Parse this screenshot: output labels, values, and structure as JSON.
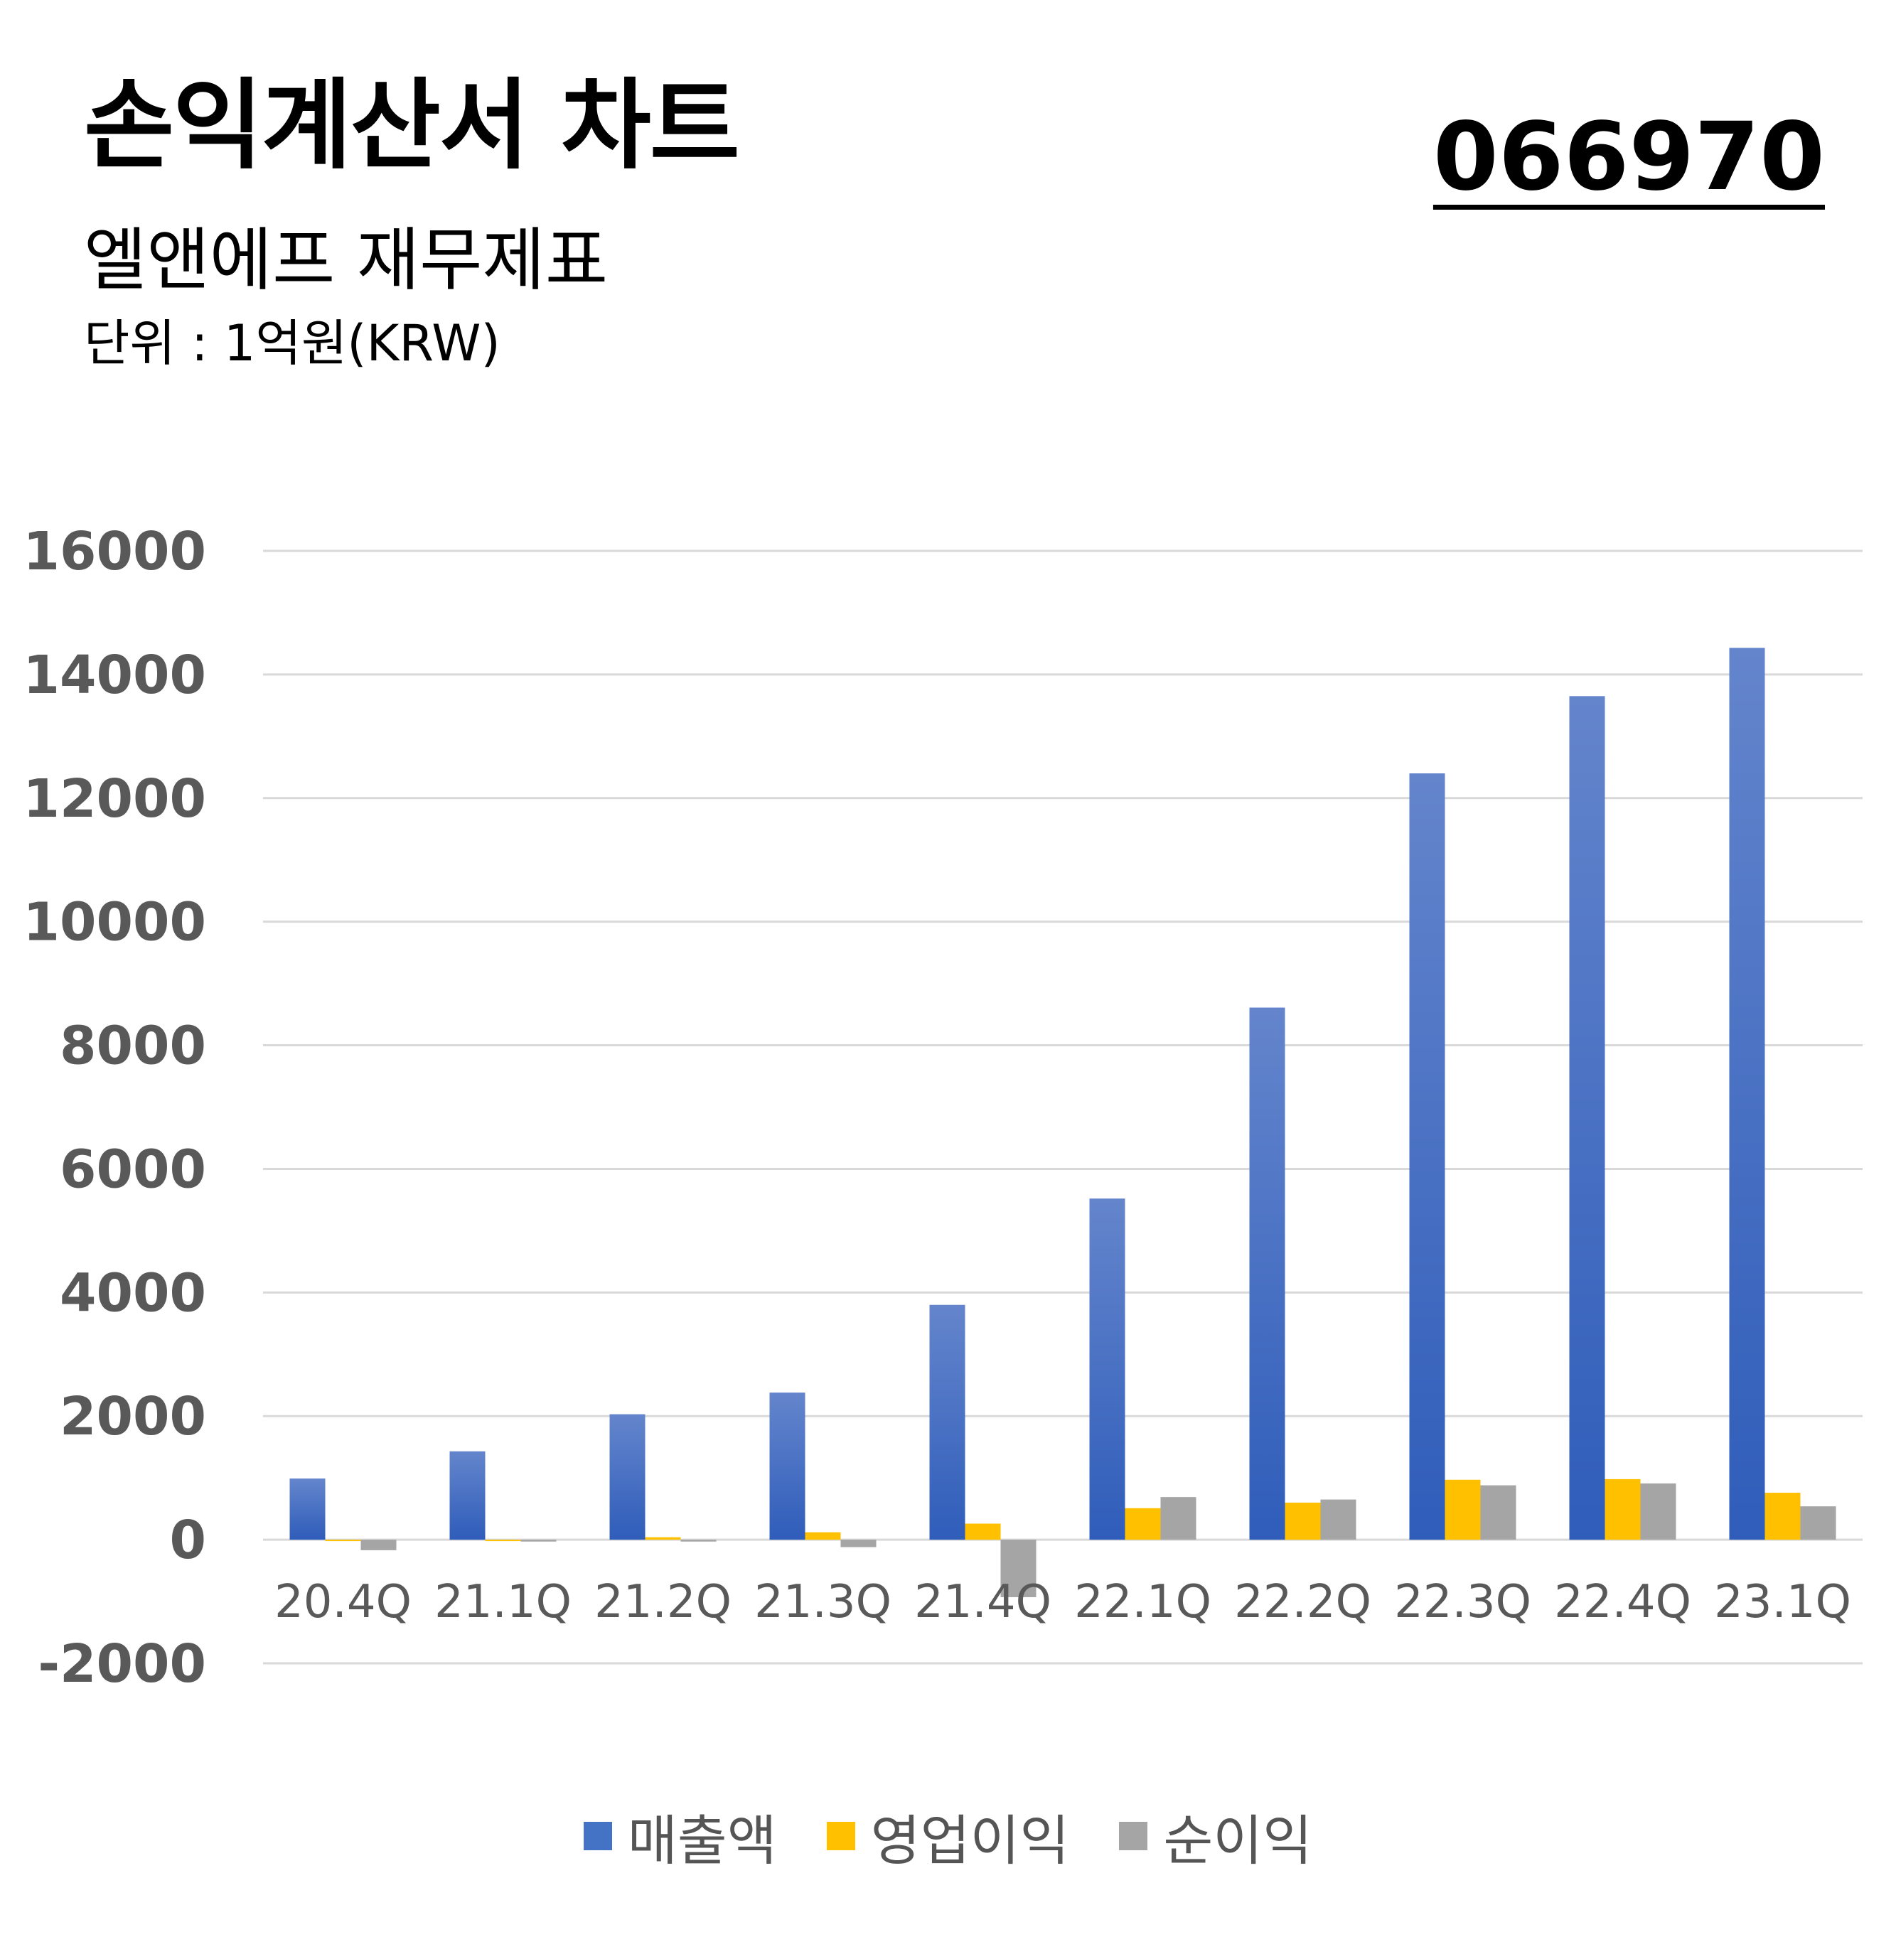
{
  "header": {
    "title": "손익계산서 차트",
    "subtitle": "엘앤에프 재무제표",
    "unit": "단위 : 1억원(KRW)",
    "code": "066970"
  },
  "colors": {
    "revenue": "#4472C4",
    "operating_income": "#FFC000",
    "net_income": "#A5A5A5",
    "gridline": "#D9D9D9",
    "axis_text": "#595959"
  },
  "chart_data": {
    "type": "bar",
    "categories": [
      "20.4Q",
      "21.1Q",
      "21.2Q",
      "21.3Q",
      "21.4Q",
      "22.1Q",
      "22.2Q",
      "22.3Q",
      "22.4Q",
      "23.1Q"
    ],
    "series": [
      {
        "name": "매출액",
        "values": [
          990,
          1430,
          2030,
          2380,
          3800,
          5520,
          8610,
          12400,
          13650,
          14430
        ]
      },
      {
        "name": "영업이익",
        "values": [
          -10,
          -20,
          40,
          120,
          260,
          510,
          600,
          970,
          980,
          760
        ]
      },
      {
        "name": "순이익",
        "values": [
          -170,
          -30,
          -30,
          -120,
          -930,
          690,
          650,
          880,
          910,
          540
        ]
      }
    ],
    "ylim": [
      -2000,
      16000
    ],
    "yticks": [
      "-2000",
      "0",
      "2000",
      "4000",
      "6000",
      "8000",
      "10000",
      "12000",
      "14000",
      "16000"
    ],
    "grid": true,
    "legend_position": "bottom"
  }
}
